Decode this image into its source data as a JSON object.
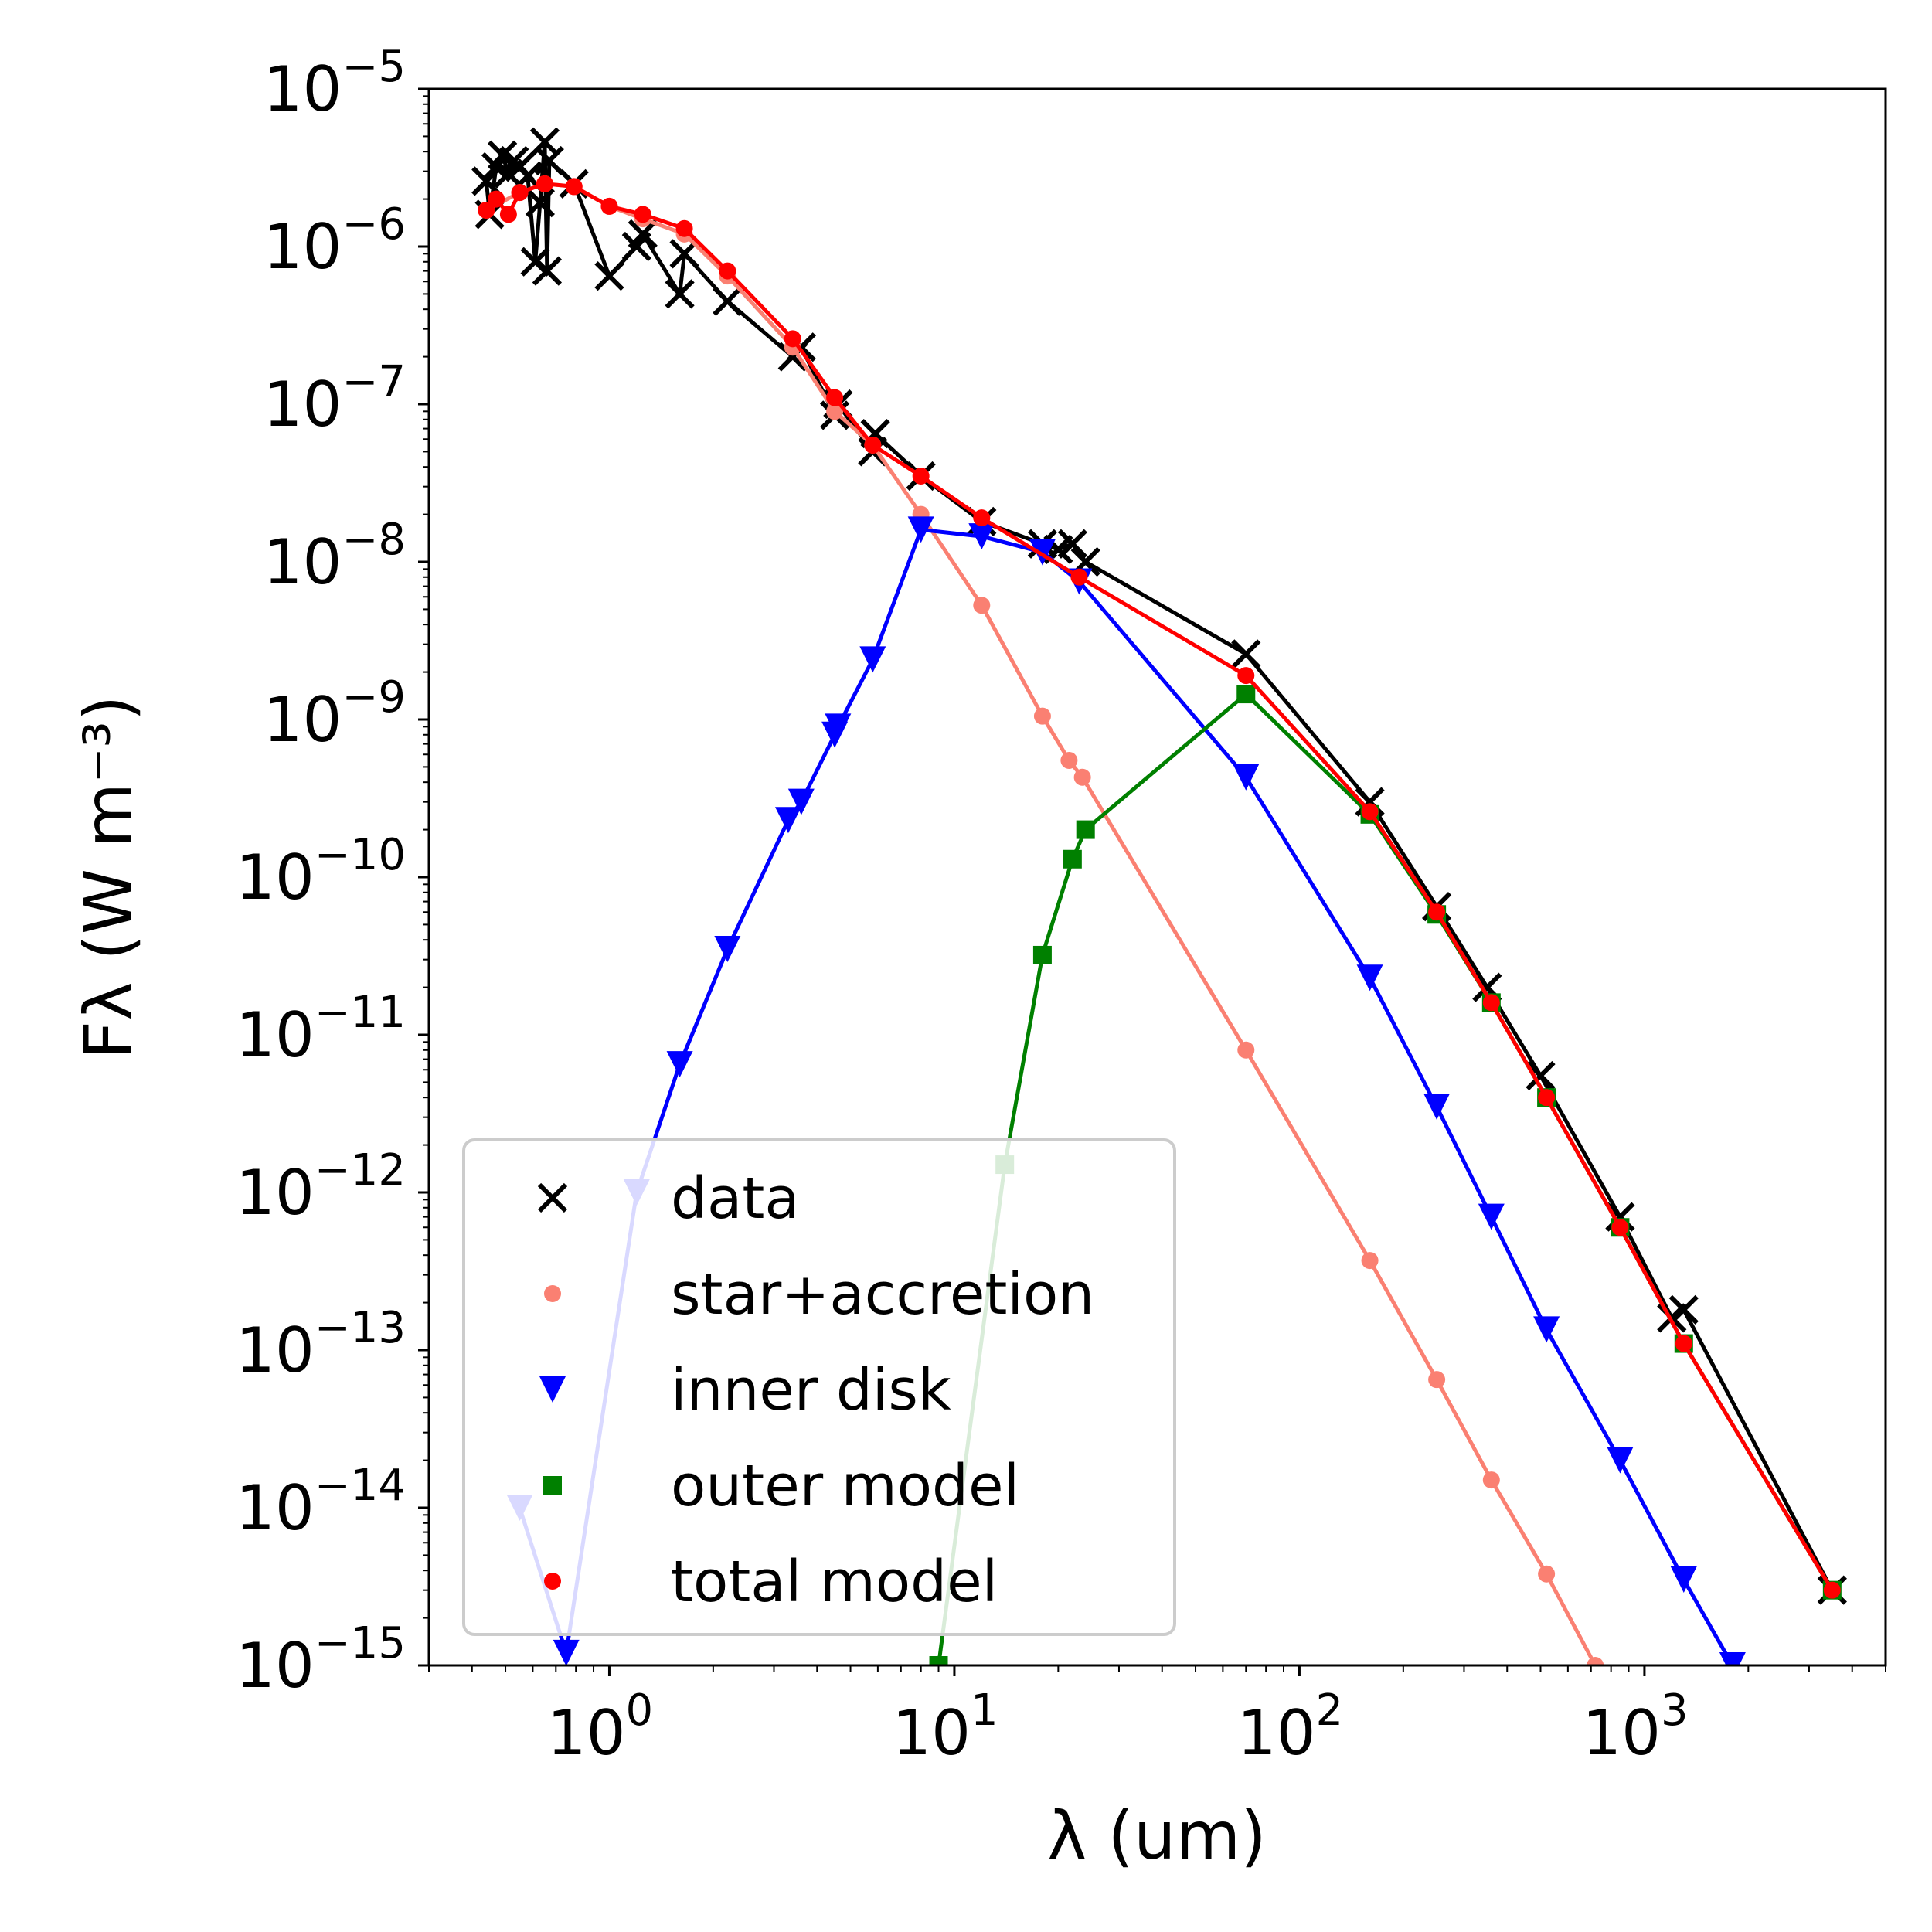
{
  "chart_data": {
    "type": "scatter",
    "title": "",
    "xlabel": "λ (um)",
    "ylabel": "Fλ (W m⁻³)",
    "xscale": "log",
    "yscale": "log",
    "xlim": [
      0.3,
      5000
    ],
    "ylim": [
      1e-15,
      1e-05
    ],
    "x_ticks": [
      {
        "value": 1,
        "label": "10",
        "exp": "0"
      },
      {
        "value": 10,
        "label": "10",
        "exp": "1"
      },
      {
        "value": 100,
        "label": "10",
        "exp": "2"
      },
      {
        "value": 1000,
        "label": "10",
        "exp": "3"
      }
    ],
    "y_ticks": [
      {
        "value": 1e-05,
        "label": "10",
        "exp": "−5"
      },
      {
        "value": 1e-06,
        "label": "10",
        "exp": "−6"
      },
      {
        "value": 1e-07,
        "label": "10",
        "exp": "−7"
      },
      {
        "value": 1e-08,
        "label": "10",
        "exp": "−8"
      },
      {
        "value": 1e-09,
        "label": "10",
        "exp": "−9"
      },
      {
        "value": 1e-10,
        "label": "10",
        "exp": "−10"
      },
      {
        "value": 1e-11,
        "label": "10",
        "exp": "−11"
      },
      {
        "value": 1e-12,
        "label": "10",
        "exp": "−12"
      },
      {
        "value": 1e-13,
        "label": "10",
        "exp": "−13"
      },
      {
        "value": 1e-14,
        "label": "10",
        "exp": "−14"
      },
      {
        "value": 1e-15,
        "label": "10",
        "exp": "−15"
      }
    ],
    "grid": false,
    "legend_position": "lower-left",
    "series": [
      {
        "name": "data",
        "marker": "x",
        "color": "#000000",
        "line": true,
        "points": [
          [
            0.44,
            2.6e-06
          ],
          [
            0.45,
            1.6e-06
          ],
          [
            0.47,
            3.2e-06
          ],
          [
            0.49,
            3.8e-06
          ],
          [
            0.51,
            2.9e-06
          ],
          [
            0.53,
            3.5e-06
          ],
          [
            0.55,
            3.2e-06
          ],
          [
            0.58,
            2.8e-06
          ],
          [
            0.61,
            8e-07
          ],
          [
            0.63,
            1.9e-06
          ],
          [
            0.65,
            4.6e-06
          ],
          [
            0.66,
            7e-07
          ],
          [
            0.67,
            3.5e-06
          ],
          [
            0.79,
            2.5e-06
          ],
          [
            1.0,
            6.5e-07
          ],
          [
            1.2,
            1e-06
          ],
          [
            1.25,
            1.2e-06
          ],
          [
            1.6,
            5e-07
          ],
          [
            1.65,
            9e-07
          ],
          [
            2.2,
            4.5e-07
          ],
          [
            3.4,
            2e-07
          ],
          [
            3.6,
            2.3e-07
          ],
          [
            4.5,
            8.5e-08
          ],
          [
            4.6,
            1e-07
          ],
          [
            5.8,
            5e-08
          ],
          [
            5.9,
            6.5e-08
          ],
          [
            8.0,
            3.5e-08
          ],
          [
            12.0,
            1.8e-08
          ],
          [
            18.0,
            1.3e-08
          ],
          [
            20.0,
            1.2e-08
          ],
          [
            22.0,
            1.3e-08
          ],
          [
            24.0,
            1e-08
          ],
          [
            70.0,
            2.6e-09
          ],
          [
            160.0,
            3e-10
          ],
          [
            250.0,
            6.5e-11
          ],
          [
            350.0,
            2e-11
          ],
          [
            500.0,
            5.5e-12
          ],
          [
            850.0,
            7e-13
          ],
          [
            1200.0,
            1.6e-13
          ],
          [
            1300.0,
            1.8e-13
          ],
          [
            3500.0,
            3e-15
          ]
        ]
      },
      {
        "name": "star+accretion",
        "marker": "o",
        "color": "#fa8072",
        "line": true,
        "points": [
          [
            0.44,
            1.7e-06
          ],
          [
            0.55,
            2.2e-06
          ],
          [
            0.65,
            2.5e-06
          ],
          [
            0.79,
            2.4e-06
          ],
          [
            1.0,
            1.8e-06
          ],
          [
            1.25,
            1.5e-06
          ],
          [
            1.65,
            1.2e-06
          ],
          [
            2.2,
            6.5e-07
          ],
          [
            3.4,
            2.3e-07
          ],
          [
            4.5,
            9e-08
          ],
          [
            5.8,
            5.5e-08
          ],
          [
            8.0,
            2e-08
          ],
          [
            12.0,
            5.3e-09
          ],
          [
            18.0,
            1.05e-09
          ],
          [
            21.5,
            5.5e-10
          ],
          [
            23.5,
            4.3e-10
          ],
          [
            70.0,
            8e-12
          ],
          [
            160.0,
            3.7e-13
          ],
          [
            250.0,
            6.5e-14
          ],
          [
            360.0,
            1.5e-14
          ],
          [
            520.0,
            3.8e-15
          ],
          [
            720.0,
            1e-15
          ]
        ]
      },
      {
        "name": "inner disk",
        "marker": "v",
        "color": "#0000ff",
        "line": true,
        "points": [
          [
            0.55,
            1e-14
          ],
          [
            0.75,
            1.2e-15
          ],
          [
            1.2,
            1e-12
          ],
          [
            1.6,
            6.5e-12
          ],
          [
            2.2,
            3.5e-11
          ],
          [
            3.3,
            2.3e-10
          ],
          [
            3.6,
            3e-10
          ],
          [
            4.5,
            8e-10
          ],
          [
            4.6,
            9e-10
          ],
          [
            5.8,
            2.4e-09
          ],
          [
            8.0,
            1.6e-08
          ],
          [
            12.0,
            1.45e-08
          ],
          [
            18.0,
            1.15e-08
          ],
          [
            23.0,
            7.5e-09
          ],
          [
            70.0,
            4.3e-10
          ],
          [
            160.0,
            2.3e-11
          ],
          [
            250.0,
            3.5e-12
          ],
          [
            360.0,
            7e-13
          ],
          [
            520.0,
            1.35e-13
          ],
          [
            850.0,
            2e-14
          ],
          [
            1300.0,
            3.5e-15
          ],
          [
            1800.0,
            1e-15
          ]
        ]
      },
      {
        "name": "outer model",
        "marker": "s",
        "color": "#008000",
        "line": true,
        "points": [
          [
            9.0,
            1e-15
          ],
          [
            14.0,
            1.5e-12
          ],
          [
            18.0,
            3.2e-11
          ],
          [
            22.0,
            1.3e-10
          ],
          [
            24.0,
            2e-10
          ],
          [
            70.0,
            1.45e-09
          ],
          [
            160.0,
            2.5e-10
          ],
          [
            250.0,
            5.8e-11
          ],
          [
            360.0,
            1.6e-11
          ],
          [
            520.0,
            4e-12
          ],
          [
            850.0,
            6e-13
          ],
          [
            1300.0,
            1.1e-13
          ],
          [
            3500.0,
            3e-15
          ]
        ]
      },
      {
        "name": "total model",
        "marker": "o",
        "color": "#ff0000",
        "line": true,
        "points": [
          [
            0.44,
            1.7e-06
          ],
          [
            0.47,
            2e-06
          ],
          [
            0.51,
            1.6e-06
          ],
          [
            0.55,
            2.2e-06
          ],
          [
            0.65,
            2.5e-06
          ],
          [
            0.79,
            2.4e-06
          ],
          [
            1.0,
            1.8e-06
          ],
          [
            1.25,
            1.6e-06
          ],
          [
            1.65,
            1.3e-06
          ],
          [
            2.2,
            7e-07
          ],
          [
            3.4,
            2.6e-07
          ],
          [
            4.5,
            1.1e-07
          ],
          [
            5.8,
            5.5e-08
          ],
          [
            8.0,
            3.5e-08
          ],
          [
            12.0,
            1.9e-08
          ],
          [
            23.0,
            8e-09
          ],
          [
            70.0,
            1.9e-09
          ],
          [
            160.0,
            2.6e-10
          ],
          [
            250.0,
            6e-11
          ],
          [
            360.0,
            1.6e-11
          ],
          [
            520.0,
            4e-12
          ],
          [
            850.0,
            6e-13
          ],
          [
            1300.0,
            1.1e-13
          ],
          [
            3500.0,
            3e-15
          ]
        ]
      }
    ]
  }
}
